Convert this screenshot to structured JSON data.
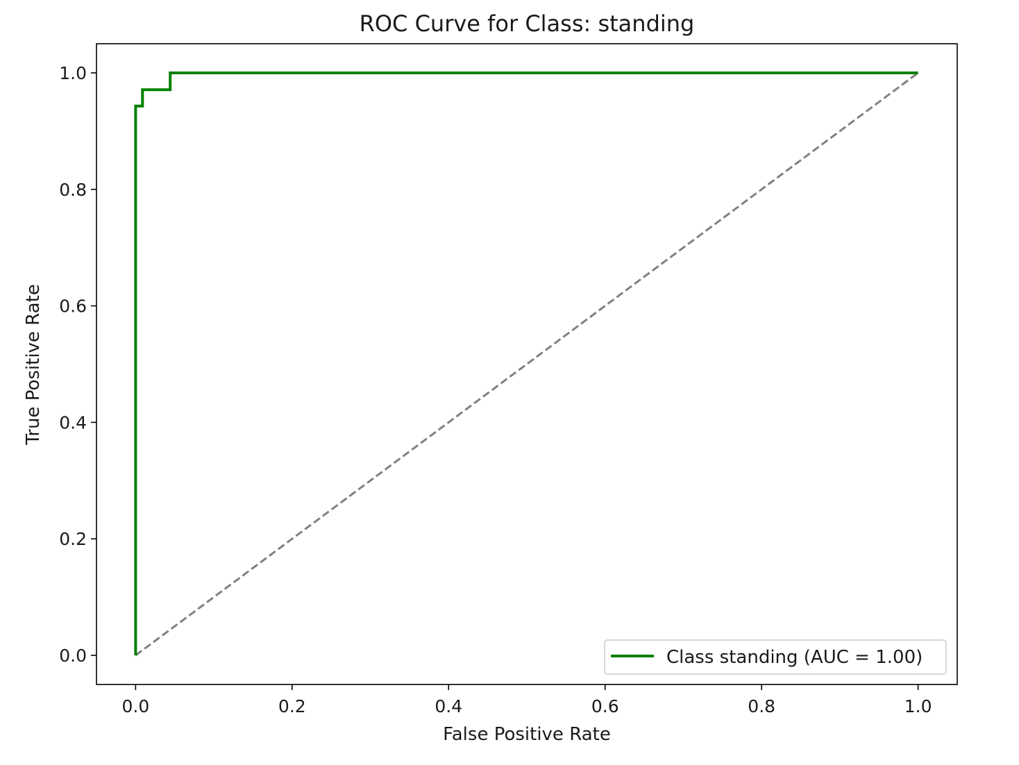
{
  "chart_data": {
    "type": "line",
    "title": "ROC Curve for Class: standing",
    "xlabel": "False Positive Rate",
    "ylabel": "True Positive Rate",
    "xlim": [
      -0.05,
      1.05
    ],
    "ylim": [
      -0.05,
      1.05
    ],
    "x_ticks": [
      0.0,
      0.2,
      0.4,
      0.6,
      0.8,
      1.0
    ],
    "x_tick_labels": [
      "0.0",
      "0.2",
      "0.4",
      "0.6",
      "0.8",
      "1.0"
    ],
    "y_ticks": [
      0.0,
      0.2,
      0.4,
      0.6,
      0.8,
      1.0
    ],
    "y_tick_labels": [
      "0.0",
      "0.2",
      "0.4",
      "0.6",
      "0.8",
      "1.0"
    ],
    "grid": false,
    "legend_position": "lower right",
    "series": [
      {
        "name": "Class standing (AUC = 1.00)",
        "color": "#008000",
        "style": "solid",
        "x": [
          0.0,
          0.0,
          0.0088,
          0.0088,
          0.0442,
          0.0442,
          1.0
        ],
        "y": [
          0.0,
          0.943,
          0.943,
          0.971,
          0.971,
          1.0,
          1.0
        ]
      },
      {
        "color": "#808080",
        "style": "dashed",
        "x": [
          0.0,
          1.0
        ],
        "y": [
          0.0,
          1.0
        ]
      }
    ]
  }
}
